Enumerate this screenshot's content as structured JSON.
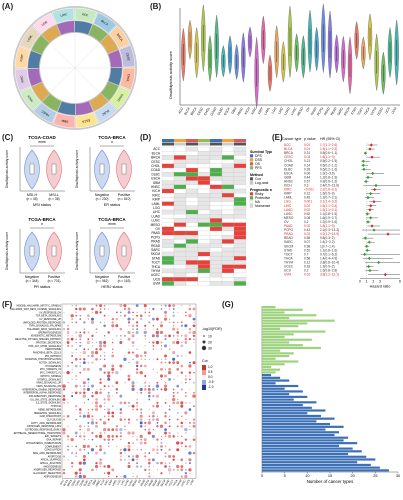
{
  "labels": {
    "A": "(A)",
    "B": "(B)",
    "C": "(C)",
    "D": "(D)",
    "E": "(E)",
    "F": "(F)",
    "G": "(G)"
  },
  "cancers": [
    "ACC",
    "BLCA",
    "BRCA",
    "CESC",
    "CHOL",
    "COAD",
    "DLBC",
    "ESCA",
    "GBM",
    "HNSC",
    "KICH",
    "KIRC",
    "KIRP",
    "LAML",
    "LGG",
    "LIHC",
    "LUAD",
    "LUSC",
    "MESO",
    "OV",
    "PAAD",
    "PCPG",
    "PRAD",
    "READ",
    "SARC",
    "SKCM",
    "STAD",
    "TGCT",
    "THCA",
    "THYM",
    "UCEC",
    "UCS",
    "UVM"
  ],
  "panelA": {
    "ring_labels": [
      "ACC",
      "BLCA",
      "BRCA",
      "CESC",
      "CHOL",
      "COAD",
      "DLBC",
      "ESCA",
      "GBM",
      "HNSC",
      "KICH",
      "KIRC",
      "KIRP",
      "LAML",
      "LGG",
      "LIHC"
    ]
  },
  "panelB": {
    "ylabel": "Disulfidptosis activity score",
    "colors": [
      "#e97a6a",
      "#e9a65f",
      "#d6c24a",
      "#a9c84f",
      "#6cc060",
      "#4fb98a",
      "#48b5b5",
      "#4aa3d4",
      "#6b8fe0",
      "#8a7be2",
      "#b36ee0",
      "#d46bd0",
      "#e06aa6"
    ]
  },
  "panelC": {
    "ylabel": "Disulfidptosis activity score",
    "plots": [
      {
        "title": "TCGA-COAD",
        "sig": "****",
        "groups": [
          "MSI-H\n(n = 45)",
          "MSI-L\n(n = 38)"
        ],
        "g1": "MSI-H",
        "g1n": "(n = 45)",
        "g2": "MSI-L",
        "g2n": "(n = 38)",
        "xlabel": "MSI status"
      },
      {
        "title": "TCGA-BRCA",
        "sig": "*",
        "g1": "Negative",
        "g1n": "(n = 230)",
        "g2": "Positive",
        "g2n": "(n = 810)",
        "xlabel": "ER status"
      },
      {
        "title": "TCGA-BRCA",
        "sig": "*",
        "g1": "Negative",
        "g1n": "(n = 344)",
        "g2": "Positive",
        "g2n": "(n = 701)",
        "xlabel": "PR status"
      },
      {
        "title": "TCGA-BRCA",
        "sig": "****",
        "g1": "Negative",
        "g1n": "(n = 562)",
        "g2": "Positive",
        "g2n": "(n = 163)",
        "xlabel": "HER2 status"
      }
    ]
  },
  "panelD": {
    "legend_title1": "Survival Type",
    "survival": [
      "DFS",
      "DSS",
      "OS",
      "PFS"
    ],
    "legend_title2": "Method",
    "methods": [
      "Cox",
      "Log-rank"
    ],
    "legend_title3": "Prognostic role",
    "roles": [
      "Risky",
      "Protective",
      "NA",
      "Nonsense"
    ],
    "colors": {
      "DFS": "#3b6fb6",
      "DSS": "#f2a43a",
      "OS": "#e15759",
      "PFS": "#8fbf4f",
      "Cox": "#555555",
      "Log-rank": "#cccccc",
      "Risky": "#e8413c",
      "Protective": "#4daf4a",
      "NA": "#ffffff",
      "Nonsense": "#dddddd"
    }
  },
  "panelE": {
    "headers": [
      "Cancer type",
      "p value",
      "HR (95% CI)"
    ],
    "xlabel": "Hazard ratio",
    "ticks": [
      "0",
      "1",
      "2",
      "3",
      "6"
    ],
    "rows": [
      [
        "ACC",
        "0.01",
        "1.7(1.1~2.6)"
      ],
      [
        "BLCA",
        "0.01",
        "1.5(1.1~2.2)"
      ],
      [
        "BRCA",
        "0.31",
        "0.8(0.6~1.1)"
      ],
      [
        "CESC",
        "0.03",
        "1.8(1.1~3)"
      ],
      [
        "CHOL",
        "0.21",
        "0.5(0.2~1.5)"
      ],
      [
        "COAD",
        "0.14",
        "0.5(0.2~1.2)"
      ],
      [
        "DLBC",
        "0.26",
        "0.6(0.2~1.6)"
      ],
      [
        "ESCA",
        "0.06",
        "1.9(1~3.6)"
      ],
      [
        "GBM",
        "0.44",
        "1.2(0.8~1.9)"
      ],
      [
        "HNSC",
        "0.57",
        "0.9(0.6~1.3)"
      ],
      [
        "KICH",
        "0.3",
        "2.4(0.5~13.6)"
      ],
      [
        "KIRC",
        "<0.001",
        "2.2(1.6~3.1)"
      ],
      [
        "KIRP",
        "0.12",
        "1.6(0.9~3)"
      ],
      [
        "LAML",
        "0.45",
        "1.2(0.7~2.1)"
      ],
      [
        "LGG",
        "0.001",
        "2.1(1.4~3.2)"
      ],
      [
        "LIHC",
        "0.02",
        "1.6(1.1~2.4)"
      ],
      [
        "LUAD",
        "0.02",
        "1.5(1.1~2.1)"
      ],
      [
        "LUSC",
        "0.52",
        "1.1(0.8~1.5)"
      ],
      [
        "MESO",
        "0.08",
        "1.6(0.9~2.7)"
      ],
      [
        "OV",
        "0.2",
        "1.2(0.9~1.6)"
      ],
      [
        "PAAD",
        "0.02",
        "1.8(1.1~3)"
      ],
      [
        "PCPG",
        "0.43",
        "2.1(0.3~13.3)"
      ],
      [
        "PRAD",
        "0.02",
        "4.2(1.2~14.9)"
      ],
      [
        "READ",
        "0.58",
        "0.8(0.3~2)"
      ],
      [
        "SARC",
        "0.07",
        "1.4(1~2.2)"
      ],
      [
        "SKCM",
        "0.98",
        "1(0.7~1.4)"
      ],
      [
        "STAD",
        "0.52",
        "1.1(0.8~1.6)"
      ],
      [
        "TGCT",
        "0.7",
        "0.7(0.1~6.2)"
      ],
      [
        "THCA",
        "0.58",
        "1.4(0.4~4.9)"
      ],
      [
        "THYM",
        "0.12",
        "2.8(0.8~10.4)"
      ],
      [
        "UCEC",
        "0.18",
        "1.3(0.9~2)"
      ],
      [
        "UCS",
        "0.2",
        "1.5(0.8~2.8)"
      ],
      [
        "UVM",
        "0.02",
        "3.8(1.2~12.1)"
      ]
    ]
  },
  "panelF": {
    "pathways": [
      "MSIGDB_HALLMARK_MITOTIC_SPINDLE",
      "HALLMARK_WNT_BETA_CATENIN_SIGNALING",
      "UV_RESPONSE_DN",
      "TGF_BETA_SIGNALING",
      "UV_RESPONSE_UP",
      "UNFOLDED_PROTEIN_RESPONSE",
      "TNFA_SIGNALING_VIA_NFKB",
      "HALLMARK_KRAS_SIGNALING",
      "SPERMATOGENESIS",
      "XENOBIOTIC_METABOLISM",
      "REACTIVE_OXYGEN_SPECIES_PATHWAY",
      "PROTEIN_SECRETION",
      "PI3K_AKT_MTOR_SIGNALING",
      "PEROXISOME",
      "PANCREAS_BETA_CELLS",
      "P53_PATHWAY",
      "OXIDATIVE_PHOSPHORYLATION",
      "NOTCH_SIGNALING",
      "MYOGENESIS",
      "MYC_TARGETS_V2",
      "MYC_TARGETS_V1",
      "MITOTIC_SPINDLE",
      "MTORC1_SIGNALING",
      "KRAS_SIGNALING_UP",
      "KRAS_SIGNALING_DN",
      "INTERFERON_GAMMA_RESPONSE",
      "INTERFERON_ALPHA_RESPONSE",
      "INFLAMMATORY_RESPONSE",
      "IL6_JAK_STAT3_SIGNALING",
      "IL2_STAT5_SIGNALING",
      "HYPOXIA",
      "HEME_METABOLISM",
      "HEDGEHOG_SIGNALING",
      "G2M_CHECKPOINT",
      "GLYCOLYSIS",
      "FATTY_ACID_METABOLISM",
      "ESTROGEN_RESPONSE_LATE",
      "ESTROGEN_RESPONSE_EARLY",
      "EPITHELIAL_MESENCHYMAL_TRANSITION",
      "E2F_TARGETS",
      "DNA_REPAIR",
      "CHOLESTEROL_HOMEOSTASIS",
      "COMPLEMENT",
      "COAGULATION",
      "BILE_ACID_METABOLISM",
      "APOPTOSIS",
      "APICAL_SURFACE",
      "APICAL_JUNCTION",
      "ANGIOGENESIS",
      "ANDROGEN_RESPONSE",
      "ALLOGRAFT_REJECTION",
      "ADIPOGENESIS"
    ],
    "legend_title1": "-log10(FDR)",
    "size_ticks": [
      "10",
      "20",
      "30"
    ],
    "legend_title2": "Cor",
    "color_ticks": [
      "1.0",
      "0.5",
      "0.0",
      "-0.5",
      "-1.0"
    ]
  },
  "panelG": {
    "xlabel": "Number of cancer types",
    "ticks": [
      "0",
      "5",
      "10",
      "15",
      "20",
      "25",
      "30"
    ],
    "green": [
      3,
      9,
      5,
      12,
      6,
      16,
      10,
      8,
      4,
      14,
      7,
      5,
      11,
      6,
      9,
      13,
      4,
      7,
      6,
      3,
      8,
      5,
      2,
      4,
      3
    ],
    "blue": [
      2,
      4,
      6,
      3,
      8,
      5,
      9,
      6,
      10,
      7,
      12,
      9,
      11,
      14,
      10,
      13,
      16,
      12,
      15,
      18,
      14,
      17,
      16,
      19,
      18,
      21,
      17,
      20,
      22,
      19,
      23,
      25,
      21,
      24,
      26,
      28
    ]
  }
}
